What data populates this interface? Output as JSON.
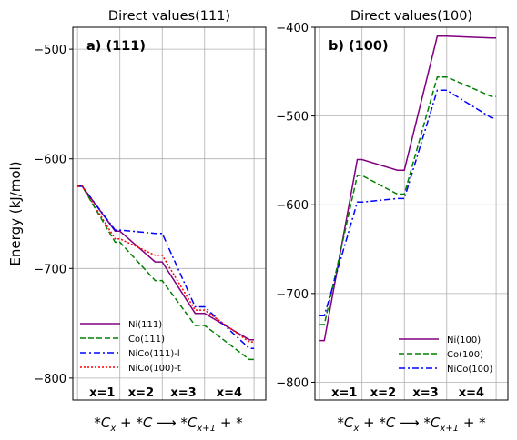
{
  "figure": {
    "ylabel": "Energy (kJ/mol)",
    "xlabel_text": "*Cx + *C ⟶ *Cx+1 + *"
  },
  "chart_data": [
    {
      "type": "line",
      "title": "Direct values(111)",
      "panel_label": "a) (111)",
      "ylabel": "Energy (kJ/mol)",
      "ylim": [
        -820,
        -480
      ],
      "yticks": [
        -800,
        -700,
        -600,
        -500
      ],
      "xlim": [
        -0.2,
        8.0
      ],
      "step_labels": [
        "x=1",
        "x=2",
        "x=3",
        "x=4"
      ],
      "grid": true,
      "legend_placement": "lower-left",
      "series": [
        {
          "name": "Ni(111)",
          "color": "#800080",
          "dash": "solid",
          "points": [
            [
              0,
              -625
            ],
            [
              0.2,
              -625
            ],
            [
              1.6,
              -666
            ],
            [
              1.8,
              -666
            ],
            [
              3.3,
              -694
            ],
            [
              3.6,
              -694
            ],
            [
              5.0,
              -741
            ],
            [
              5.4,
              -741
            ],
            [
              7.3,
              -765
            ],
            [
              7.5,
              -765
            ]
          ]
        },
        {
          "name": "Co(111)",
          "color": "#008000",
          "dash": "dashed",
          "points": [
            [
              0,
              -625
            ],
            [
              0.2,
              -625
            ],
            [
              1.6,
              -676
            ],
            [
              1.8,
              -676
            ],
            [
              3.3,
              -711
            ],
            [
              3.6,
              -711
            ],
            [
              5.0,
              -752
            ],
            [
              5.4,
              -752
            ],
            [
              7.3,
              -783
            ],
            [
              7.5,
              -783
            ]
          ]
        },
        {
          "name": "NiCo(111)-l",
          "color": "#0000ff",
          "dash": "dashdot",
          "points": [
            [
              0,
              -625
            ],
            [
              0.2,
              -625
            ],
            [
              1.6,
              -665
            ],
            [
              1.8,
              -665
            ],
            [
              3.3,
              -668
            ],
            [
              3.6,
              -668
            ],
            [
              5.0,
              -735
            ],
            [
              5.4,
              -735
            ],
            [
              7.3,
              -773
            ],
            [
              7.5,
              -773
            ]
          ]
        },
        {
          "name": "NiCo(100)-t",
          "color": "#ff0000",
          "dash": "dotted",
          "points": [
            [
              0,
              -625
            ],
            [
              0.2,
              -625
            ],
            [
              1.6,
              -673
            ],
            [
              1.8,
              -673
            ],
            [
              3.3,
              -688
            ],
            [
              3.6,
              -688
            ],
            [
              5.0,
              -738
            ],
            [
              5.4,
              -738
            ],
            [
              7.3,
              -767
            ],
            [
              7.5,
              -767
            ]
          ]
        }
      ]
    },
    {
      "type": "line",
      "title": "Direct values(100)",
      "panel_label": "b) (100)",
      "ylim": [
        -820,
        -400
      ],
      "yticks": [
        -800,
        -700,
        -600,
        -500,
        -400
      ],
      "xlim": [
        -0.2,
        8.0
      ],
      "step_labels": [
        "x=1",
        "x=2",
        "x=3",
        "x=4"
      ],
      "grid": true,
      "legend_placement": "lower-right",
      "series": [
        {
          "name": "Ni(100)",
          "color": "#800080",
          "dash": "solid",
          "points": [
            [
              0,
              -753
            ],
            [
              0.2,
              -753
            ],
            [
              1.6,
              -549
            ],
            [
              1.8,
              -549
            ],
            [
              3.3,
              -561
            ],
            [
              3.6,
              -561
            ],
            [
              5.0,
              -410
            ],
            [
              5.4,
              -410
            ],
            [
              7.3,
              -412
            ],
            [
              7.5,
              -412
            ]
          ]
        },
        {
          "name": "Co(100)",
          "color": "#008000",
          "dash": "dashed",
          "points": [
            [
              0,
              -735
            ],
            [
              0.2,
              -735
            ],
            [
              1.6,
              -567
            ],
            [
              1.8,
              -567
            ],
            [
              3.3,
              -588
            ],
            [
              3.6,
              -588
            ],
            [
              5.0,
              -456
            ],
            [
              5.4,
              -456
            ],
            [
              7.3,
              -478
            ],
            [
              7.5,
              -478
            ]
          ]
        },
        {
          "name": "NiCo(100)",
          "color": "#0000ff",
          "dash": "dashdot",
          "points": [
            [
              0,
              -725
            ],
            [
              0.2,
              -725
            ],
            [
              1.6,
              -597
            ],
            [
              1.8,
              -597
            ],
            [
              3.3,
              -593
            ],
            [
              3.6,
              -593
            ],
            [
              5.0,
              -471
            ],
            [
              5.4,
              -471
            ],
            [
              7.3,
              -502
            ],
            [
              7.5,
              -502
            ]
          ]
        }
      ]
    }
  ]
}
